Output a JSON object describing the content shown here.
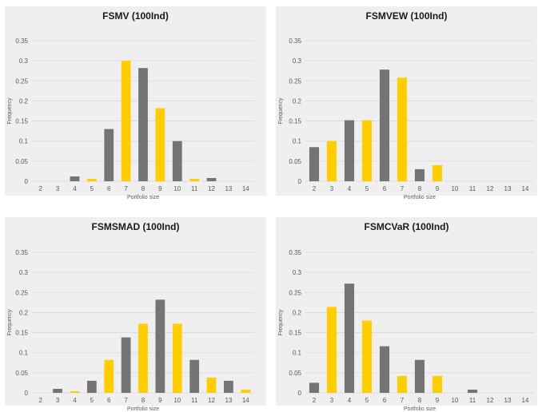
{
  "colors": {
    "panel_bg": "#efefef",
    "gray": "#747474",
    "yellow": "#ffcd00",
    "grid": "#d9d9d9",
    "text": "#595959",
    "title": "#1a1a1a"
  },
  "chart_data": [
    {
      "type": "bar",
      "title": "FSMV (100Ind)",
      "xlabel": "Portfolio size",
      "ylabel": "Frequency",
      "ylim": [
        0,
        0.35
      ],
      "yticks": [
        "0",
        "0.05",
        "0.1",
        "0.15",
        "0.2",
        "0.25",
        "0.3",
        "0.35"
      ],
      "categories": [
        "2",
        "3",
        "4",
        "5",
        "6",
        "7",
        "8",
        "9",
        "10",
        "11",
        "12",
        "13",
        "14"
      ],
      "values": [
        0,
        0,
        0.012,
        0.006,
        0.13,
        0.3,
        0.282,
        0.182,
        0.1,
        0.006,
        0.008,
        0,
        0
      ],
      "bar_colors": [
        "gray",
        "yellow",
        "gray",
        "yellow",
        "gray",
        "yellow",
        "gray",
        "yellow",
        "gray",
        "yellow",
        "gray",
        "yellow",
        "gray"
      ],
      "grid": true
    },
    {
      "type": "bar",
      "title": "FSMVEW (100Ind)",
      "xlabel": "Portfolio size",
      "ylabel": "Frequency",
      "ylim": [
        0,
        0.35
      ],
      "yticks": [
        "0",
        "0.05",
        "0.1",
        "0.15",
        "0.2",
        "0.25",
        "0.3",
        "0.35"
      ],
      "categories": [
        "2",
        "3",
        "4",
        "5",
        "6",
        "7",
        "8",
        "9",
        "10",
        "11",
        "12",
        "13",
        "14"
      ],
      "values": [
        0.085,
        0.1,
        0.152,
        0.152,
        0.278,
        0.258,
        0.03,
        0.04,
        0,
        0,
        0,
        0,
        0
      ],
      "bar_colors": [
        "gray",
        "yellow",
        "gray",
        "yellow",
        "gray",
        "yellow",
        "gray",
        "yellow",
        "gray",
        "yellow",
        "gray",
        "yellow",
        "gray"
      ],
      "grid": true
    },
    {
      "type": "bar",
      "title": "FSMSMAD (100Ind)",
      "xlabel": "Portfolio size",
      "ylabel": "Frequency",
      "ylim": [
        0,
        0.35
      ],
      "yticks": [
        "0",
        "0.05",
        "0.1",
        "0.15",
        "0.2",
        "0.25",
        "0.3",
        "0.35"
      ],
      "categories": [
        "2",
        "3",
        "4",
        "5",
        "6",
        "7",
        "8",
        "9",
        "10",
        "11",
        "12",
        "13",
        "14"
      ],
      "values": [
        0,
        0.01,
        0.004,
        0.03,
        0.082,
        0.138,
        0.172,
        0.232,
        0.172,
        0.082,
        0.038,
        0.03,
        0.008
      ],
      "bar_colors": [
        "yellow",
        "gray",
        "yellow",
        "gray",
        "yellow",
        "gray",
        "yellow",
        "gray",
        "yellow",
        "gray",
        "yellow",
        "gray",
        "yellow"
      ],
      "grid": true
    },
    {
      "type": "bar",
      "title": "FSMCVaR (100Ind)",
      "xlabel": "Portfolio size",
      "ylabel": "Frequency",
      "ylim": [
        0,
        0.35
      ],
      "yticks": [
        "0",
        "0.05",
        "0.1",
        "0.15",
        "0.2",
        "0.25",
        "0.3",
        "0.35"
      ],
      "categories": [
        "2",
        "3",
        "4",
        "5",
        "6",
        "7",
        "8",
        "9",
        "10",
        "11",
        "12",
        "13",
        "14"
      ],
      "values": [
        0.025,
        0.214,
        0.272,
        0.18,
        0.116,
        0.042,
        0.082,
        0.042,
        0,
        0.008,
        0,
        0,
        0
      ],
      "bar_colors": [
        "gray",
        "yellow",
        "gray",
        "yellow",
        "gray",
        "yellow",
        "gray",
        "yellow",
        "gray",
        "gray",
        "gray",
        "yellow",
        "gray"
      ],
      "grid": true
    }
  ]
}
